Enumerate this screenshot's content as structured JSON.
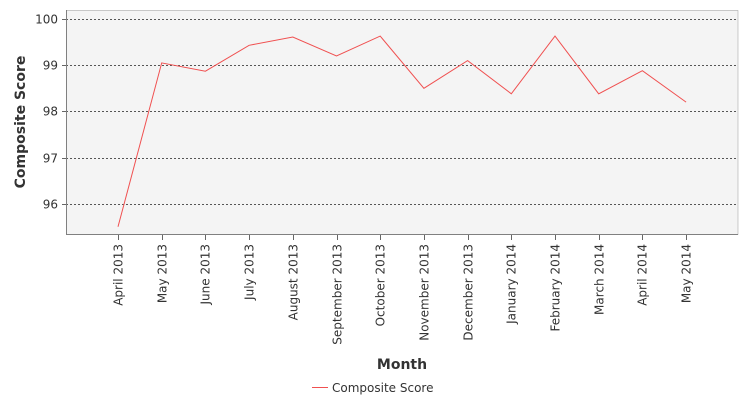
{
  "chart_data": {
    "type": "line",
    "title": "",
    "xlabel": "Month",
    "ylabel": "Composite Score",
    "categories": [
      "April 2013",
      "May 2013",
      "June 2013",
      "July 2013",
      "August 2013",
      "September 2013",
      "October 2013",
      "November 2013",
      "December 2013",
      "January 2014",
      "February 2014",
      "March 2014",
      "April 2014",
      "May 2014"
    ],
    "series": [
      {
        "name": "Composite Score",
        "color": "#f05050",
        "values": [
          95.5,
          99.05,
          98.87,
          99.43,
          99.61,
          99.2,
          99.63,
          98.5,
          99.1,
          98.38,
          99.63,
          98.38,
          98.88,
          98.2
        ]
      }
    ],
    "yticks": [
      "96",
      "97",
      "98",
      "99",
      "100"
    ],
    "ylim": [
      95.3,
      100.1
    ],
    "grid": true,
    "legend": "bottom-center"
  }
}
